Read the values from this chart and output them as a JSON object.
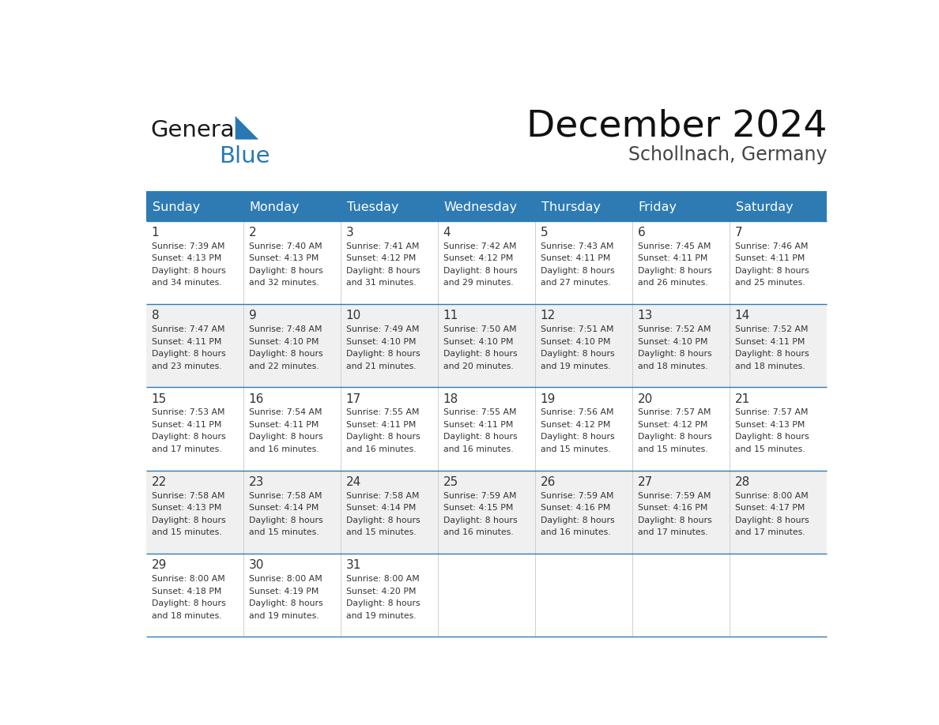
{
  "title": "December 2024",
  "subtitle": "Schollnach, Germany",
  "header_bg": "#2E7BB4",
  "header_text_color": "#FFFFFF",
  "day_names": [
    "Sunday",
    "Monday",
    "Tuesday",
    "Wednesday",
    "Thursday",
    "Friday",
    "Saturday"
  ],
  "row_bg_odd": "#FFFFFF",
  "row_bg_even": "#F0F0F0",
  "cell_border_color": "#2E7BB4",
  "number_color": "#333333",
  "info_color": "#333333",
  "logo_general_color": "#1a1a1a",
  "logo_blue_color": "#2878B4",
  "days": [
    {
      "day": 1,
      "row": 0,
      "col": 0,
      "sunrise": "7:39 AM",
      "sunset": "4:13 PM",
      "daylight_min": "34"
    },
    {
      "day": 2,
      "row": 0,
      "col": 1,
      "sunrise": "7:40 AM",
      "sunset": "4:13 PM",
      "daylight_min": "32"
    },
    {
      "day": 3,
      "row": 0,
      "col": 2,
      "sunrise": "7:41 AM",
      "sunset": "4:12 PM",
      "daylight_min": "31"
    },
    {
      "day": 4,
      "row": 0,
      "col": 3,
      "sunrise": "7:42 AM",
      "sunset": "4:12 PM",
      "daylight_min": "29"
    },
    {
      "day": 5,
      "row": 0,
      "col": 4,
      "sunrise": "7:43 AM",
      "sunset": "4:11 PM",
      "daylight_min": "27"
    },
    {
      "day": 6,
      "row": 0,
      "col": 5,
      "sunrise": "7:45 AM",
      "sunset": "4:11 PM",
      "daylight_min": "26"
    },
    {
      "day": 7,
      "row": 0,
      "col": 6,
      "sunrise": "7:46 AM",
      "sunset": "4:11 PM",
      "daylight_min": "25"
    },
    {
      "day": 8,
      "row": 1,
      "col": 0,
      "sunrise": "7:47 AM",
      "sunset": "4:11 PM",
      "daylight_min": "23"
    },
    {
      "day": 9,
      "row": 1,
      "col": 1,
      "sunrise": "7:48 AM",
      "sunset": "4:10 PM",
      "daylight_min": "22"
    },
    {
      "day": 10,
      "row": 1,
      "col": 2,
      "sunrise": "7:49 AM",
      "sunset": "4:10 PM",
      "daylight_min": "21"
    },
    {
      "day": 11,
      "row": 1,
      "col": 3,
      "sunrise": "7:50 AM",
      "sunset": "4:10 PM",
      "daylight_min": "20"
    },
    {
      "day": 12,
      "row": 1,
      "col": 4,
      "sunrise": "7:51 AM",
      "sunset": "4:10 PM",
      "daylight_min": "19"
    },
    {
      "day": 13,
      "row": 1,
      "col": 5,
      "sunrise": "7:52 AM",
      "sunset": "4:10 PM",
      "daylight_min": "18"
    },
    {
      "day": 14,
      "row": 1,
      "col": 6,
      "sunrise": "7:52 AM",
      "sunset": "4:11 PM",
      "daylight_min": "18"
    },
    {
      "day": 15,
      "row": 2,
      "col": 0,
      "sunrise": "7:53 AM",
      "sunset": "4:11 PM",
      "daylight_min": "17"
    },
    {
      "day": 16,
      "row": 2,
      "col": 1,
      "sunrise": "7:54 AM",
      "sunset": "4:11 PM",
      "daylight_min": "16"
    },
    {
      "day": 17,
      "row": 2,
      "col": 2,
      "sunrise": "7:55 AM",
      "sunset": "4:11 PM",
      "daylight_min": "16"
    },
    {
      "day": 18,
      "row": 2,
      "col": 3,
      "sunrise": "7:55 AM",
      "sunset": "4:11 PM",
      "daylight_min": "16"
    },
    {
      "day": 19,
      "row": 2,
      "col": 4,
      "sunrise": "7:56 AM",
      "sunset": "4:12 PM",
      "daylight_min": "15"
    },
    {
      "day": 20,
      "row": 2,
      "col": 5,
      "sunrise": "7:57 AM",
      "sunset": "4:12 PM",
      "daylight_min": "15"
    },
    {
      "day": 21,
      "row": 2,
      "col": 6,
      "sunrise": "7:57 AM",
      "sunset": "4:13 PM",
      "daylight_min": "15"
    },
    {
      "day": 22,
      "row": 3,
      "col": 0,
      "sunrise": "7:58 AM",
      "sunset": "4:13 PM",
      "daylight_min": "15"
    },
    {
      "day": 23,
      "row": 3,
      "col": 1,
      "sunrise": "7:58 AM",
      "sunset": "4:14 PM",
      "daylight_min": "15"
    },
    {
      "day": 24,
      "row": 3,
      "col": 2,
      "sunrise": "7:58 AM",
      "sunset": "4:14 PM",
      "daylight_min": "15"
    },
    {
      "day": 25,
      "row": 3,
      "col": 3,
      "sunrise": "7:59 AM",
      "sunset": "4:15 PM",
      "daylight_min": "16"
    },
    {
      "day": 26,
      "row": 3,
      "col": 4,
      "sunrise": "7:59 AM",
      "sunset": "4:16 PM",
      "daylight_min": "16"
    },
    {
      "day": 27,
      "row": 3,
      "col": 5,
      "sunrise": "7:59 AM",
      "sunset": "4:16 PM",
      "daylight_min": "17"
    },
    {
      "day": 28,
      "row": 3,
      "col": 6,
      "sunrise": "8:00 AM",
      "sunset": "4:17 PM",
      "daylight_min": "17"
    },
    {
      "day": 29,
      "row": 4,
      "col": 0,
      "sunrise": "8:00 AM",
      "sunset": "4:18 PM",
      "daylight_min": "18"
    },
    {
      "day": 30,
      "row": 4,
      "col": 1,
      "sunrise": "8:00 AM",
      "sunset": "4:19 PM",
      "daylight_min": "19"
    },
    {
      "day": 31,
      "row": 4,
      "col": 2,
      "sunrise": "8:00 AM",
      "sunset": "4:20 PM",
      "daylight_min": "19"
    }
  ]
}
